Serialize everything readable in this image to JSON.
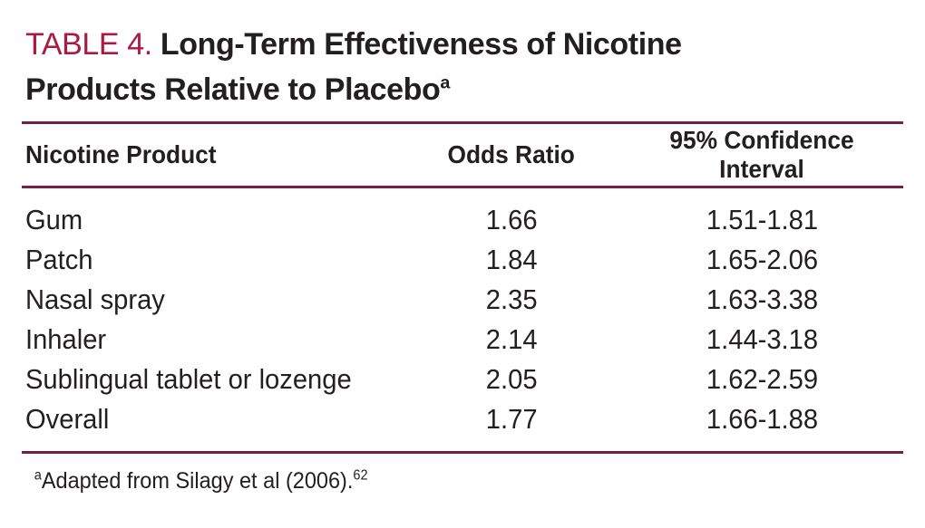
{
  "colors": {
    "accent_red": "#ab1a40",
    "rule_maroon": "#702347",
    "text_black": "#231f20",
    "background": "#ffffff"
  },
  "figure": {
    "label": "TABLE 4.",
    "title_line1": "Long-Term Effectiveness of Nicotine",
    "title_line2": "Products Relative to Placebo",
    "title_footnote_marker": "a",
    "header": {
      "product": "Nicotine Product",
      "odds_ratio": "Odds Ratio",
      "confidence_interval": "95% Confidence Interval"
    },
    "rows": [
      {
        "product": "Gum",
        "odds_ratio": "1.66",
        "confidence_interval": "1.51-1.81"
      },
      {
        "product": "Patch",
        "odds_ratio": "1.84",
        "confidence_interval": "1.65-2.06"
      },
      {
        "product": "Nasal spray",
        "odds_ratio": "2.35",
        "confidence_interval": "1.63-3.38"
      },
      {
        "product": "Inhaler",
        "odds_ratio": "2.14",
        "confidence_interval": "1.44-3.18"
      },
      {
        "product": "Sublingual tablet or lozenge",
        "odds_ratio": "2.05",
        "confidence_interval": "1.62-2.59"
      },
      {
        "product": "Overall",
        "odds_ratio": "1.77",
        "confidence_interval": "1.66-1.88"
      }
    ],
    "footnote": {
      "marker": "a",
      "text": "Adapted from Silagy et al (2006).",
      "reference": "62"
    }
  },
  "chart_data": {
    "type": "table",
    "title": "TABLE 4. Long-Term Effectiveness of Nicotine Products Relative to Placebo",
    "columns": [
      "Nicotine Product",
      "Odds Ratio",
      "95% Confidence Interval"
    ],
    "rows": [
      [
        "Gum",
        1.66,
        "1.51-1.81"
      ],
      [
        "Patch",
        1.84,
        "1.65-2.06"
      ],
      [
        "Nasal spray",
        2.35,
        "1.63-3.38"
      ],
      [
        "Inhaler",
        2.14,
        "1.44-3.18"
      ],
      [
        "Sublingual tablet or lozenge",
        2.05,
        "1.62-2.59"
      ],
      [
        "Overall",
        1.77,
        "1.66-1.88"
      ]
    ],
    "footnote": "Adapted from Silagy et al (2006)."
  }
}
